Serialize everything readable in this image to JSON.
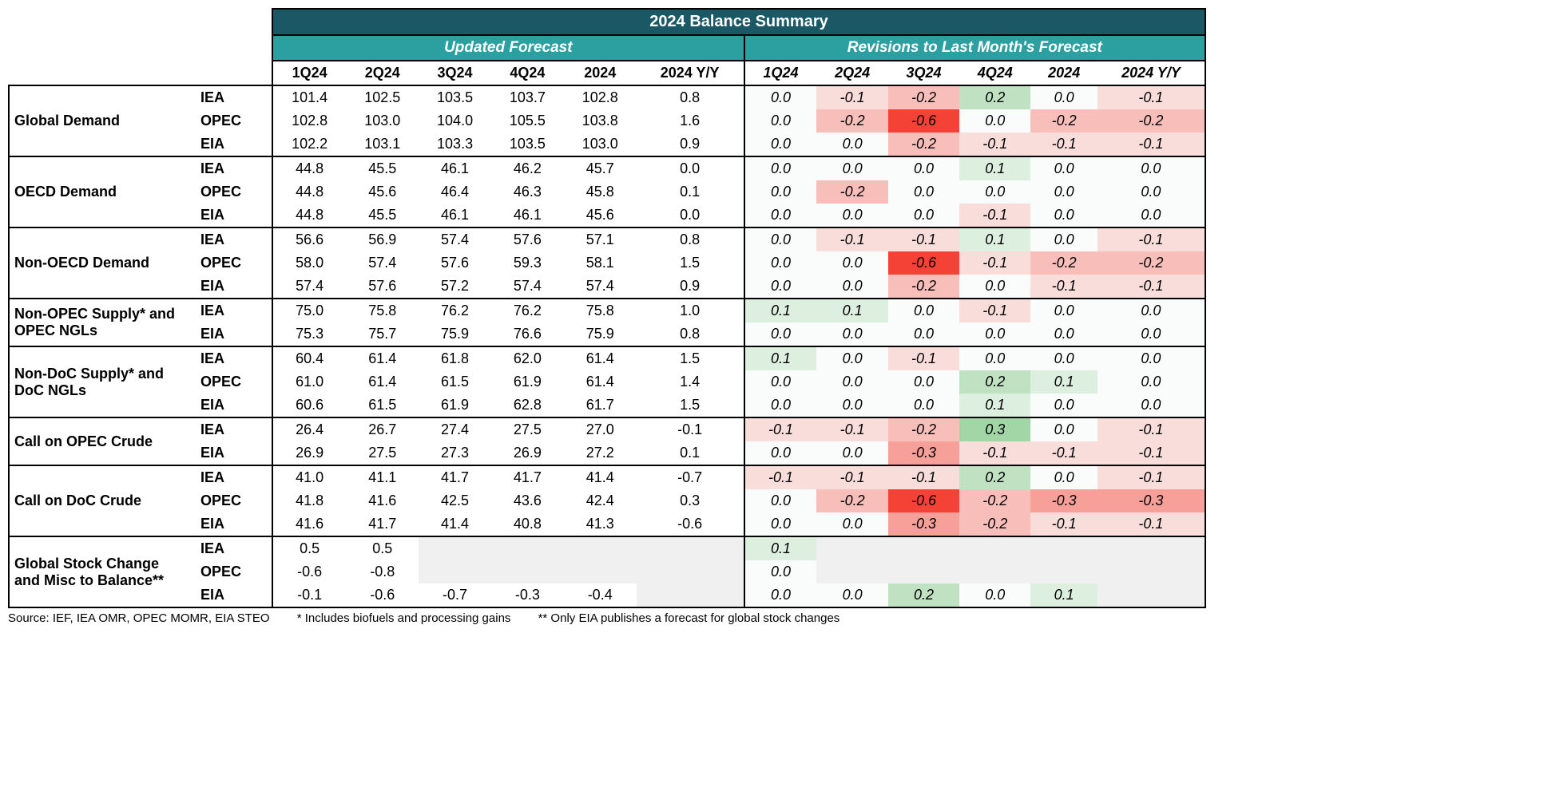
{
  "title": "2024 Balance Summary",
  "subheaders": [
    "Updated Forecast",
    "Revisions to Last Month's Forecast"
  ],
  "columns": [
    "1Q24",
    "2Q24",
    "3Q24",
    "4Q24",
    "2024",
    "2024 Y/Y"
  ],
  "footnote_source": "Source: IEF, IEA OMR, OPEC MOMR, EIA STEO",
  "footnote_star": "* Includes biofuels and processing gains",
  "footnote_dstar": "** Only EIA publishes a forecast for global stock changes",
  "heatmap": {
    "neg_max_color": "#f44336",
    "pos_max_color": "#4caf50",
    "zero_color": "#fafcfc",
    "empty_color": "#f0f0f0",
    "scale": 0.6
  },
  "groups": [
    {
      "label": "Global Demand",
      "rows": [
        {
          "agency": "IEA",
          "forecast": [
            "101.4",
            "102.5",
            "103.5",
            "103.7",
            "102.8",
            "0.8"
          ],
          "rev": [
            0.0,
            -0.1,
            -0.2,
            0.2,
            0.0,
            -0.1
          ]
        },
        {
          "agency": "OPEC",
          "forecast": [
            "102.8",
            "103.0",
            "104.0",
            "105.5",
            "103.8",
            "1.6"
          ],
          "rev": [
            0.0,
            -0.2,
            -0.6,
            0.0,
            -0.2,
            -0.2
          ]
        },
        {
          "agency": "EIA",
          "forecast": [
            "102.2",
            "103.1",
            "103.3",
            "103.5",
            "103.0",
            "0.9"
          ],
          "rev": [
            0.0,
            0.0,
            -0.2,
            -0.1,
            -0.1,
            -0.1
          ]
        }
      ]
    },
    {
      "label": "OECD Demand",
      "rows": [
        {
          "agency": "IEA",
          "forecast": [
            "44.8",
            "45.5",
            "46.1",
            "46.2",
            "45.7",
            "0.0"
          ],
          "rev": [
            0.0,
            0.0,
            0.0,
            0.1,
            0.0,
            0.0
          ]
        },
        {
          "agency": "OPEC",
          "forecast": [
            "44.8",
            "45.6",
            "46.4",
            "46.3",
            "45.8",
            "0.1"
          ],
          "rev": [
            0.0,
            -0.2,
            0.0,
            0.0,
            0.0,
            0.0
          ]
        },
        {
          "agency": "EIA",
          "forecast": [
            "44.8",
            "45.5",
            "46.1",
            "46.1",
            "45.6",
            "0.0"
          ],
          "rev": [
            0.0,
            0.0,
            0.0,
            -0.1,
            0.0,
            0.0
          ]
        }
      ]
    },
    {
      "label": "Non-OECD Demand",
      "rows": [
        {
          "agency": "IEA",
          "forecast": [
            "56.6",
            "56.9",
            "57.4",
            "57.6",
            "57.1",
            "0.8"
          ],
          "rev": [
            0.0,
            -0.1,
            -0.1,
            0.1,
            0.0,
            -0.1
          ]
        },
        {
          "agency": "OPEC",
          "forecast": [
            "58.0",
            "57.4",
            "57.6",
            "59.3",
            "58.1",
            "1.5"
          ],
          "rev": [
            0.0,
            0.0,
            -0.6,
            -0.1,
            -0.2,
            -0.2
          ]
        },
        {
          "agency": "EIA",
          "forecast": [
            "57.4",
            "57.6",
            "57.2",
            "57.4",
            "57.4",
            "0.9"
          ],
          "rev": [
            0.0,
            0.0,
            -0.2,
            0.0,
            -0.1,
            -0.1
          ]
        }
      ]
    },
    {
      "label": "Non-OPEC Supply* and OPEC NGLs",
      "rows": [
        {
          "agency": "IEA",
          "forecast": [
            "75.0",
            "75.8",
            "76.2",
            "76.2",
            "75.8",
            "1.0"
          ],
          "rev": [
            0.1,
            0.1,
            0.0,
            -0.1,
            0.0,
            0.0
          ]
        },
        {
          "agency": "EIA",
          "forecast": [
            "75.3",
            "75.7",
            "75.9",
            "76.6",
            "75.9",
            "0.8"
          ],
          "rev": [
            0.0,
            0.0,
            0.0,
            0.0,
            0.0,
            0.0
          ]
        }
      ]
    },
    {
      "label": "Non-DoC Supply* and DoC NGLs",
      "rows": [
        {
          "agency": "IEA",
          "forecast": [
            "60.4",
            "61.4",
            "61.8",
            "62.0",
            "61.4",
            "1.5"
          ],
          "rev": [
            0.1,
            0.0,
            -0.1,
            0.0,
            0.0,
            0.0
          ]
        },
        {
          "agency": "OPEC",
          "forecast": [
            "61.0",
            "61.4",
            "61.5",
            "61.9",
            "61.4",
            "1.4"
          ],
          "rev": [
            0.0,
            0.0,
            0.0,
            0.2,
            0.1,
            0.0
          ]
        },
        {
          "agency": "EIA",
          "forecast": [
            "60.6",
            "61.5",
            "61.9",
            "62.8",
            "61.7",
            "1.5"
          ],
          "rev": [
            0.0,
            0.0,
            0.0,
            0.1,
            0.0,
            0.0
          ]
        }
      ]
    },
    {
      "label": "Call on OPEC Crude",
      "rows": [
        {
          "agency": "IEA",
          "forecast": [
            "26.4",
            "26.7",
            "27.4",
            "27.5",
            "27.0",
            "-0.1"
          ],
          "rev": [
            -0.1,
            -0.1,
            -0.2,
            0.3,
            0.0,
            -0.1
          ]
        },
        {
          "agency": "EIA",
          "forecast": [
            "26.9",
            "27.5",
            "27.3",
            "26.9",
            "27.2",
            "0.1"
          ],
          "rev": [
            0.0,
            0.0,
            -0.3,
            -0.1,
            -0.1,
            -0.1
          ]
        }
      ]
    },
    {
      "label": "Call on DoC Crude",
      "rows": [
        {
          "agency": "IEA",
          "forecast": [
            "41.0",
            "41.1",
            "41.7",
            "41.7",
            "41.4",
            "-0.7"
          ],
          "rev": [
            -0.1,
            -0.1,
            -0.1,
            0.2,
            0.0,
            -0.1
          ]
        },
        {
          "agency": "OPEC",
          "forecast": [
            "41.8",
            "41.6",
            "42.5",
            "43.6",
            "42.4",
            "0.3"
          ],
          "rev": [
            0.0,
            -0.2,
            -0.6,
            -0.2,
            -0.3,
            -0.3
          ]
        },
        {
          "agency": "EIA",
          "forecast": [
            "41.6",
            "41.7",
            "41.4",
            "40.8",
            "41.3",
            "-0.6"
          ],
          "rev": [
            0.0,
            0.0,
            -0.3,
            -0.2,
            -0.1,
            -0.1
          ]
        }
      ]
    },
    {
      "label": "Global Stock Change and Misc to Balance**",
      "rows": [
        {
          "agency": "IEA",
          "forecast": [
            "0.5",
            "0.5",
            "",
            "",
            "",
            ""
          ],
          "rev": [
            0.1,
            null,
            null,
            null,
            null,
            null
          ]
        },
        {
          "agency": "OPEC",
          "forecast": [
            "-0.6",
            "-0.8",
            "",
            "",
            "",
            ""
          ],
          "rev": [
            0.0,
            null,
            null,
            null,
            null,
            null
          ]
        },
        {
          "agency": "EIA",
          "forecast": [
            "-0.1",
            "-0.6",
            "-0.7",
            "-0.3",
            "-0.4",
            ""
          ],
          "rev": [
            0.0,
            0.0,
            0.2,
            0.0,
            0.1,
            null
          ]
        }
      ]
    }
  ]
}
